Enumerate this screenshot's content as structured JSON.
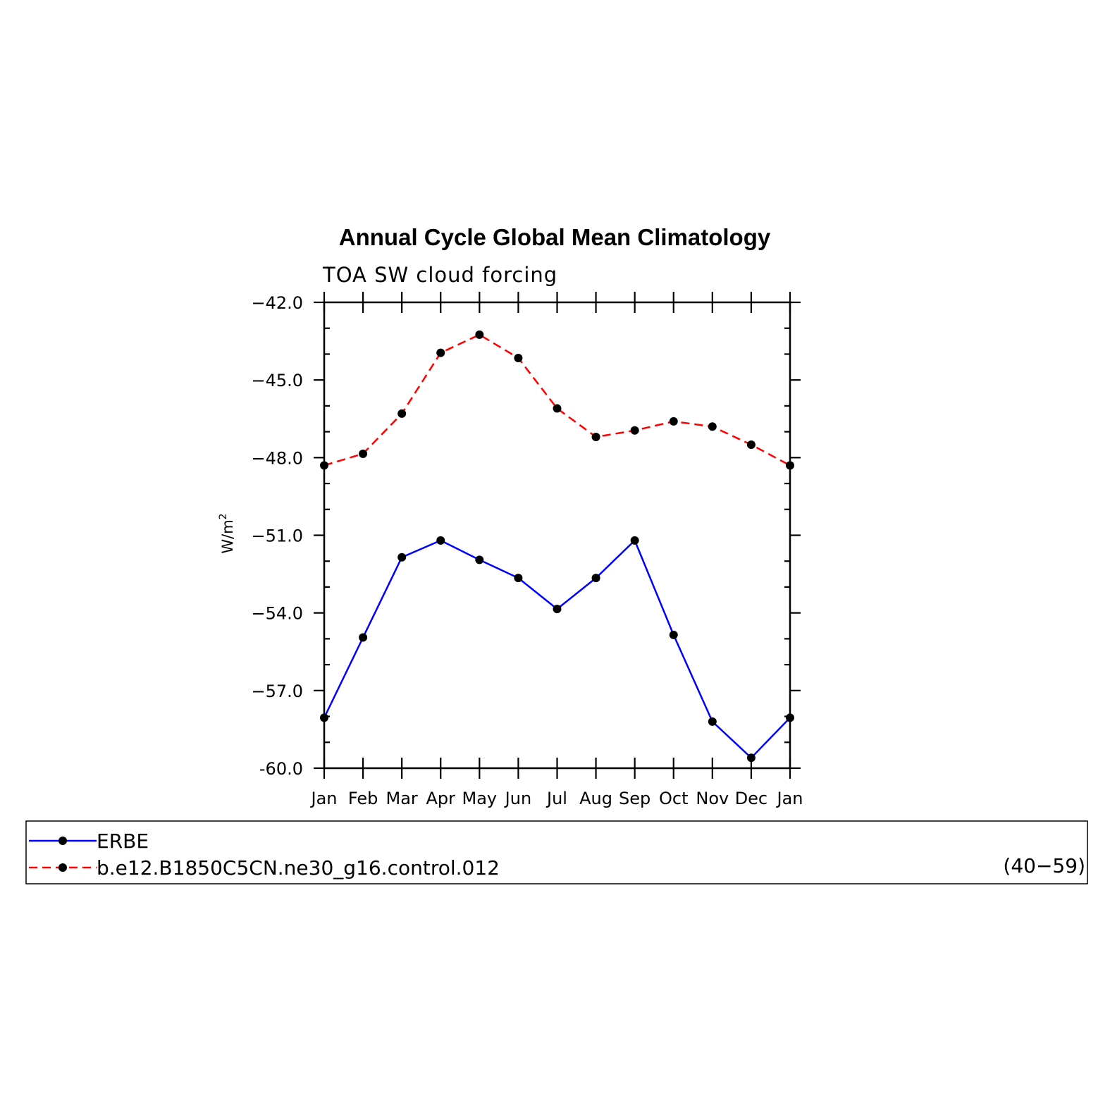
{
  "chart_data": {
    "type": "line",
    "title": "Annual Cycle Global Mean Climatology",
    "subtitle": "TOA SW cloud forcing",
    "xlabel": "",
    "ylabel": "W/m",
    "ylabel_superscript": "2",
    "categories": [
      "Jan",
      "Feb",
      "Mar",
      "Apr",
      "May",
      "Jun",
      "Jul",
      "Aug",
      "Sep",
      "Oct",
      "Nov",
      "Dec",
      "Jan"
    ],
    "ylim": [
      -60.0,
      -42.0
    ],
    "yticks": [
      -42.0,
      -45.0,
      -48.0,
      -51.0,
      -54.0,
      -57.0,
      -60.0
    ],
    "ytick_labels": [
      "−42.0",
      "−45.0",
      "−48.0",
      "−51.0",
      "−54.0",
      "−57.0",
      "-60.0"
    ],
    "y_minor_step": 1.0,
    "grid": false,
    "legend_position": "bottom",
    "series": [
      {
        "name": "ERBE",
        "color": "#0000ff",
        "line_style": "solid",
        "marker": "filled-circle",
        "values": [
          -58.05,
          -54.95,
          -51.85,
          -51.2,
          -51.95,
          -52.65,
          -53.85,
          -52.65,
          -51.2,
          -54.85,
          -58.2,
          -59.6,
          -58.05
        ]
      },
      {
        "name": "b.e12.B1850C5CN.ne30_g16.control.012",
        "color": "#ff0000",
        "line_style": "dashed",
        "marker": "filled-circle",
        "values": [
          -48.3,
          -47.85,
          -46.3,
          -43.95,
          -43.25,
          -44.15,
          -46.1,
          -47.2,
          -46.95,
          -46.6,
          -46.8,
          -47.5,
          -48.3
        ]
      }
    ],
    "legend_note": "(40−59)"
  }
}
